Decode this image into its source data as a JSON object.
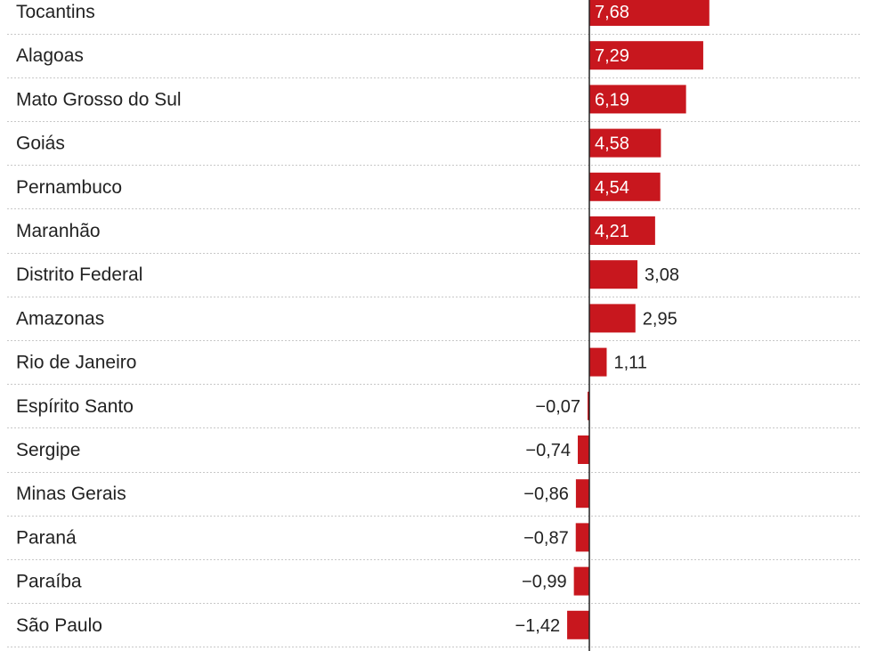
{
  "chart_data": {
    "type": "bar",
    "orientation": "horizontal",
    "categories": [
      "Tocantins",
      "Alagoas",
      "Mato Grosso do Sul",
      "Goiás",
      "Pernambuco",
      "Maranhão",
      "Distrito Federal",
      "Amazonas",
      "Rio de Janeiro",
      "Espírito Santo",
      "Sergipe",
      "Minas Gerais",
      "Paraná",
      "Paraíba",
      "São Paulo"
    ],
    "values": [
      7.68,
      7.29,
      6.19,
      4.58,
      4.54,
      4.21,
      3.08,
      2.95,
      1.11,
      -0.07,
      -0.74,
      -0.86,
      -0.87,
      -0.99,
      -1.42
    ],
    "value_labels": [
      "7,68",
      "7,29",
      "6,19",
      "4,58",
      "4,54",
      "4,21",
      "3,08",
      "2,95",
      "1,11",
      "−0,07",
      "−0,74",
      "−0,86",
      "−0,87",
      "−0,99",
      "−1,42"
    ],
    "title": "",
    "xlabel": "",
    "ylabel": "",
    "grid": false,
    "colors": {
      "bar": "#c8171e",
      "label_inside": "#ffffff",
      "label_outside": "#222222"
    }
  }
}
